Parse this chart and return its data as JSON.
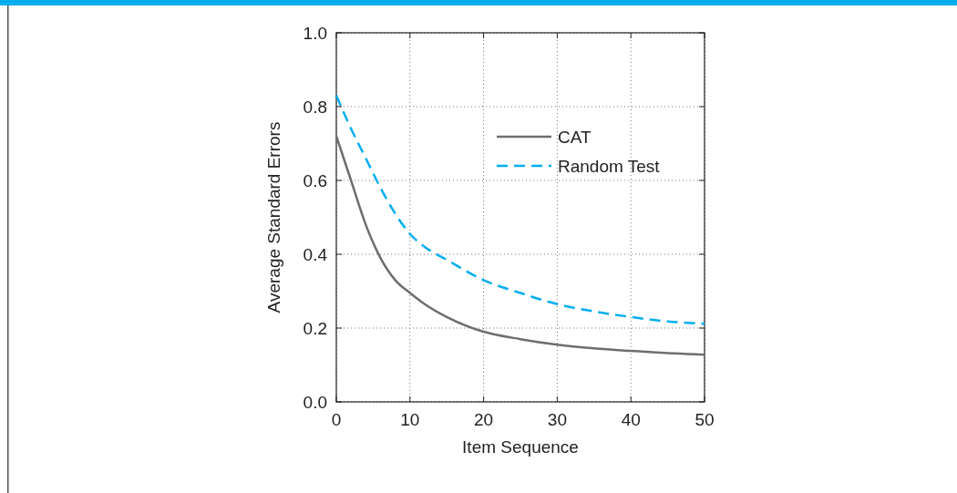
{
  "chart_data": {
    "type": "line",
    "xlabel": "Item Sequence",
    "ylabel": "Average Standard Errors",
    "x": [
      0,
      2,
      4,
      6,
      8,
      10,
      12,
      15,
      20,
      25,
      30,
      35,
      40,
      45,
      50
    ],
    "xlim": [
      0,
      50
    ],
    "xticks": [
      0,
      10,
      20,
      30,
      40,
      50
    ],
    "ylim": [
      0,
      1
    ],
    "yticks": [
      {
        "value": 0,
        "label": "0.0"
      },
      {
        "value": 0.2,
        "label": "0.2"
      },
      {
        "value": 0.4,
        "label": "0.4"
      },
      {
        "value": 0.6,
        "label": "0.6"
      },
      {
        "value": 0.8,
        "label": "0.8"
      },
      {
        "value": 1,
        "label": "1.0"
      }
    ],
    "grid": true,
    "legend": "top right",
    "marker": "none",
    "series": [
      {
        "name": "CAT",
        "color": "#6d6e71",
        "line_style": "solid",
        "values": [
          0.72,
          0.6,
          0.48,
          0.39,
          0.33,
          0.295,
          0.265,
          0.23,
          0.19,
          0.17,
          0.155,
          0.145,
          0.138,
          0.132,
          0.128
        ]
      },
      {
        "name": "Random Test",
        "color": "#00aeef",
        "line_style": "dashed",
        "values": [
          0.83,
          0.74,
          0.66,
          0.58,
          0.51,
          0.455,
          0.42,
          0.385,
          0.33,
          0.295,
          0.265,
          0.245,
          0.23,
          0.218,
          0.212
        ]
      }
    ]
  }
}
